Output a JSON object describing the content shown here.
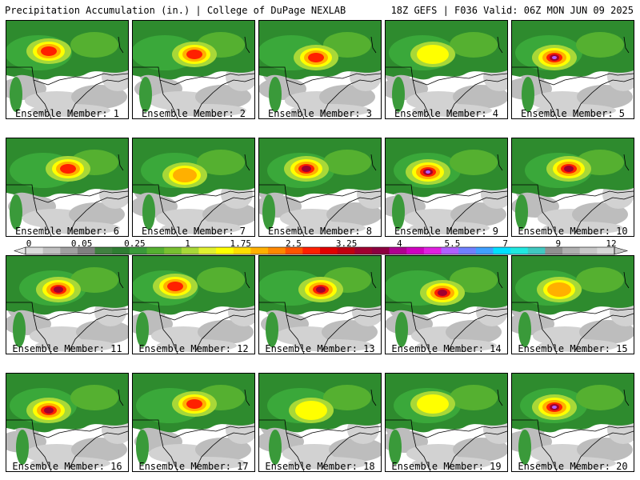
{
  "header": {
    "left": "Precipitation Accumulation (in.) | College of DuPage NEXLAB",
    "right": "18Z GEFS | F036 Valid: 06Z MON JUN 09 2025"
  },
  "colorbar": {
    "ticks": [
      "0",
      "0.05",
      "0.25",
      "1",
      "1.75",
      "2.5",
      "3.25",
      "4",
      "5.5",
      "7",
      "9",
      "12"
    ],
    "colors": [
      "#dcdcdc",
      "#c0c0c0",
      "#a0a0a0",
      "#808080",
      "#408040",
      "#2e7d32",
      "#3a9a3a",
      "#55b030",
      "#78c030",
      "#a8d838",
      "#e0f030",
      "#ffff00",
      "#ffdd00",
      "#ffb000",
      "#ff8800",
      "#ff5500",
      "#ff2000",
      "#e00000",
      "#c00010",
      "#a00030",
      "#8c0040",
      "#b00090",
      "#d000c0",
      "#e020e0",
      "#b060ff",
      "#7080ff",
      "#40a0ff",
      "#00e0ff",
      "#20e8e0",
      "#40c8c0",
      "#909090",
      "#b0b0b0",
      "#c8c8c8",
      "#d8d8d8"
    ]
  },
  "members": [
    {
      "label": "Ensemble Member: 1",
      "intensity": 3
    },
    {
      "label": "Ensemble Member: 2",
      "intensity": 3
    },
    {
      "label": "Ensemble Member: 3",
      "intensity": 3
    },
    {
      "label": "Ensemble Member: 4",
      "intensity": 1
    },
    {
      "label": "Ensemble Member: 5",
      "intensity": 5
    },
    {
      "label": "Ensemble Member: 6",
      "intensity": 3
    },
    {
      "label": "Ensemble Member: 7",
      "intensity": 2
    },
    {
      "label": "Ensemble Member: 8",
      "intensity": 4
    },
    {
      "label": "Ensemble Member: 9",
      "intensity": 5
    },
    {
      "label": "Ensemble Member: 10",
      "intensity": 4
    },
    {
      "label": "Ensemble Member: 11",
      "intensity": 4
    },
    {
      "label": "Ensemble Member: 12",
      "intensity": 3
    },
    {
      "label": "Ensemble Member: 13",
      "intensity": 4
    },
    {
      "label": "Ensemble Member: 14",
      "intensity": 4
    },
    {
      "label": "Ensemble Member: 15",
      "intensity": 2
    },
    {
      "label": "Ensemble Member: 16",
      "intensity": 4
    },
    {
      "label": "Ensemble Member: 17",
      "intensity": 3
    },
    {
      "label": "Ensemble Member: 18",
      "intensity": 1
    },
    {
      "label": "Ensemble Member: 19",
      "intensity": 1
    },
    {
      "label": "Ensemble Member: 20",
      "intensity": 5
    }
  ]
}
